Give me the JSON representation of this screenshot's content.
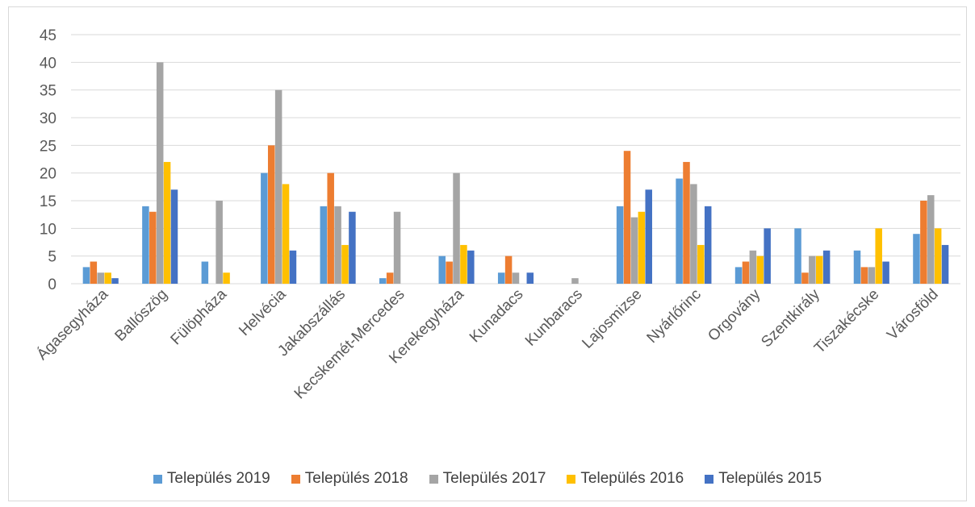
{
  "chart_data": {
    "type": "bar",
    "title": "",
    "xlabel": "",
    "ylabel": "",
    "ylim": [
      0,
      45
    ],
    "yticks": [
      0,
      5,
      10,
      15,
      20,
      25,
      30,
      35,
      40,
      45
    ],
    "grid": true,
    "legend_position": "bottom",
    "categories": [
      "Ágasegyháza",
      "Ballószög",
      "Fülöpháza",
      "Helvécia",
      "Jakabszállás",
      "Kecskemét-Mercedes",
      "Kerekegyháza",
      "Kunadacs",
      "Kunbaracs",
      "Lajosmizse",
      "Nyárlőrinc",
      "Orgovány",
      "Szentkirály",
      "Tiszakécske",
      "Városföld"
    ],
    "series": [
      {
        "name": "Település 2019",
        "color": "#5b9bd5",
        "values": [
          3,
          14,
          4,
          20,
          14,
          1,
          5,
          2,
          0,
          14,
          19,
          3,
          10,
          6,
          9
        ]
      },
      {
        "name": "Település 2018",
        "color": "#ed7d31",
        "values": [
          4,
          13,
          0,
          25,
          20,
          2,
          4,
          5,
          0,
          24,
          22,
          4,
          2,
          3,
          15
        ]
      },
      {
        "name": "Település 2017",
        "color": "#a5a5a5",
        "values": [
          2,
          40,
          15,
          35,
          14,
          13,
          20,
          2,
          1,
          12,
          18,
          6,
          5,
          3,
          16
        ]
      },
      {
        "name": "Település 2016",
        "color": "#ffc000",
        "values": [
          2,
          22,
          2,
          18,
          7,
          0,
          7,
          0,
          0,
          13,
          7,
          5,
          5,
          10,
          10
        ]
      },
      {
        "name": "Település 2015",
        "color": "#4472c4",
        "values": [
          1,
          17,
          0,
          6,
          13,
          0,
          6,
          2,
          0,
          17,
          14,
          10,
          6,
          4,
          7
        ]
      }
    ]
  }
}
